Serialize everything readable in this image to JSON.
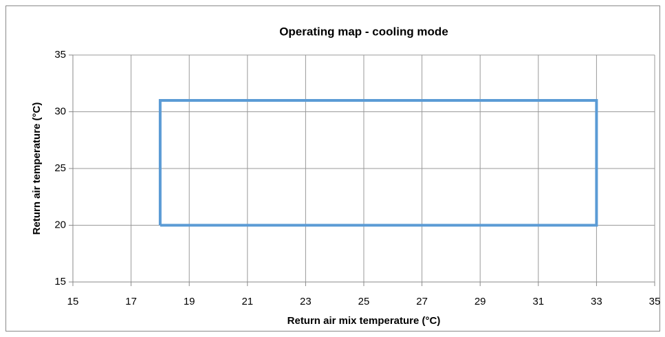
{
  "chart_data": {
    "type": "line",
    "title": "Operating map - cooling mode",
    "x_label": "Return air mix temperature (°C)",
    "y_label": "Return air temperature (°C)",
    "x": [
      18,
      18,
      33,
      33,
      18
    ],
    "values": [
      20,
      31,
      31,
      20,
      20
    ],
    "color": "#5b9bd5",
    "xlim": [
      15,
      35
    ],
    "xticks": [
      15,
      17,
      19,
      21,
      23,
      25,
      27,
      29,
      31,
      33,
      35
    ],
    "ylim": [
      15,
      35
    ],
    "yticks": [
      15,
      20,
      25,
      30,
      35
    ],
    "grid": true
  }
}
